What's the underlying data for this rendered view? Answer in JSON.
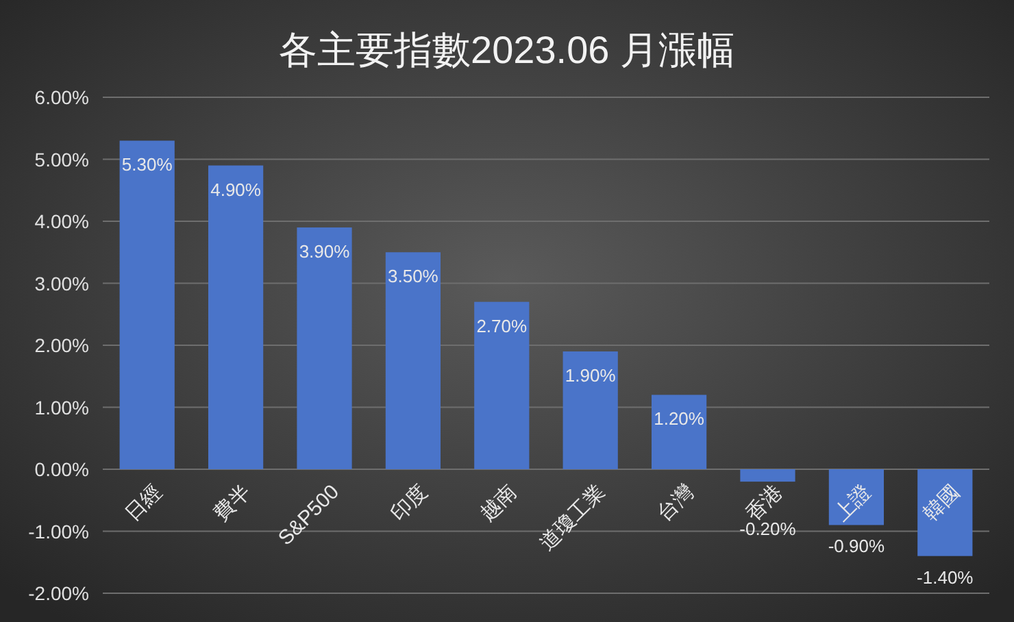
{
  "chart_data": {
    "type": "bar",
    "title": "各主要指數2023.06 月漲幅",
    "categories": [
      "日經",
      "費半",
      "S&P500",
      "印度",
      "越南",
      "道瓊工業",
      "台灣",
      "香港",
      "上證",
      "韓國"
    ],
    "values": [
      5.3,
      4.9,
      3.9,
      3.5,
      2.7,
      1.9,
      1.2,
      -0.2,
      -0.9,
      -1.4
    ],
    "value_labels": [
      "5.30%",
      "4.90%",
      "3.90%",
      "3.50%",
      "2.70%",
      "1.90%",
      "1.20%",
      "-0.20%",
      "-0.90%",
      "-1.40%"
    ],
    "color": "#4a74c9",
    "ylim": [
      -2,
      6
    ],
    "yticks": [
      {
        "value": -2,
        "label": "-2.00%"
      },
      {
        "value": -1,
        "label": "-1.00%"
      },
      {
        "value": 0,
        "label": "0.00%"
      },
      {
        "value": 1,
        "label": "1.00%"
      },
      {
        "value": 2,
        "label": "2.00%"
      },
      {
        "value": 3,
        "label": "3.00%"
      },
      {
        "value": 4,
        "label": "4.00%"
      },
      {
        "value": 5,
        "label": "5.00%"
      },
      {
        "value": 6,
        "label": "6.00%"
      }
    ],
    "grid": "y"
  }
}
